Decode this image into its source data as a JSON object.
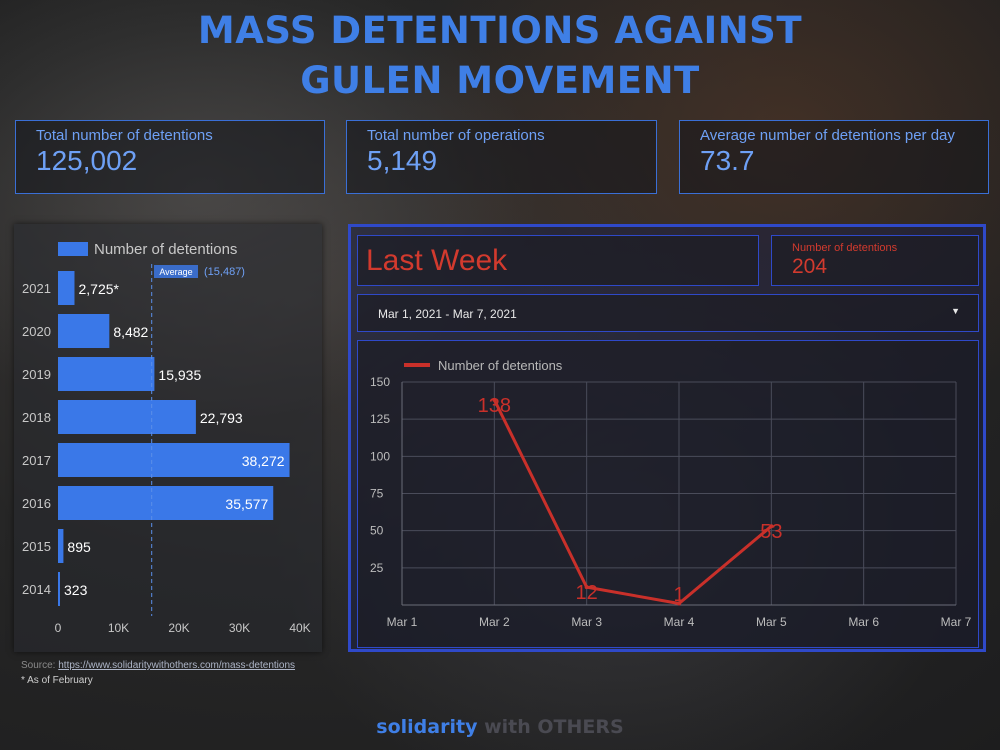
{
  "title": {
    "line1": "MASS DETENTIONS AGAINST",
    "line2": "GULEN MOVEMENT"
  },
  "kpis": [
    {
      "label": "Total number of detentions",
      "value": "125,002"
    },
    {
      "label": "Total number of operations",
      "value": "5,149"
    },
    {
      "label": "Average number of detentions per day",
      "value": "73.7"
    }
  ],
  "colors": {
    "accent": "#3f7fe6",
    "bar": "#3a78e8",
    "line": "#c9302a",
    "border": "#2f49c9"
  },
  "chart_data": [
    {
      "type": "bar",
      "orientation": "horizontal",
      "legend": "Number of detentions",
      "categories": [
        "2021",
        "2020",
        "2019",
        "2018",
        "2017",
        "2016",
        "2015",
        "2014"
      ],
      "values": [
        2725,
        8482,
        15935,
        22793,
        38272,
        35577,
        895,
        323
      ],
      "value_labels": [
        "2,725*",
        "8,482",
        "15,935",
        "22,793",
        "38,272",
        "35,577",
        "895",
        "323"
      ],
      "reference_line": {
        "label": "Average",
        "value_label": "(15,487)",
        "value": 15487
      },
      "xticks": [
        "0",
        "10K",
        "20K",
        "30K",
        "40K"
      ],
      "xtick_values": [
        0,
        10000,
        20000,
        30000,
        40000
      ],
      "xlim": [
        0,
        40000
      ]
    },
    {
      "type": "line",
      "legend": "Number of detentions",
      "x": [
        "Mar 1",
        "Mar 2",
        "Mar 3",
        "Mar 4",
        "Mar 5",
        "Mar 6",
        "Mar 7"
      ],
      "series": [
        {
          "name": "Number of detentions",
          "points": [
            {
              "x": "Mar 2",
              "y": 138
            },
            {
              "x": "Mar 3",
              "y": 12
            },
            {
              "x": "Mar 4",
              "y": 1
            },
            {
              "x": "Mar 5",
              "y": 53
            }
          ]
        }
      ],
      "yticks": [
        "150",
        "125",
        "100",
        "75",
        "50",
        "25"
      ],
      "ylim": [
        0,
        150
      ],
      "grid": true
    }
  ],
  "lastweek": {
    "title": "Last Week",
    "metric_label": "Number of detentions",
    "metric_value": "204",
    "date_range": "Mar 1, 2021 - Mar 7, 2021",
    "dropdown_icon": "caret-down-icon"
  },
  "source": {
    "prefix": "Source: ",
    "url": "https://www.solidaritywithothers.com/mass-detentions"
  },
  "note": "* As of February",
  "brand": {
    "part1": "solidarity",
    "part2": " with OTHERS"
  }
}
